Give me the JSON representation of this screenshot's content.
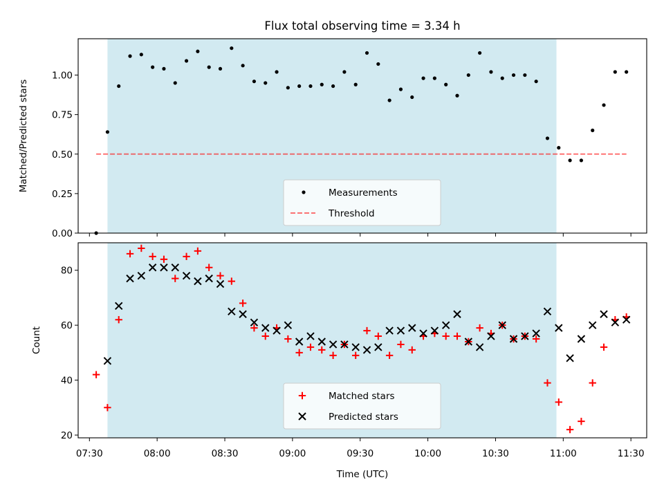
{
  "title": "Flux total observing time = 3.34 h",
  "colors": {
    "shade": "#add8e6",
    "threshold": "#ff0000",
    "matched": "#ff0000",
    "predicted": "#000000",
    "measurement": "#000000"
  },
  "chart_data": [
    {
      "type": "scatter",
      "panel": "top",
      "xlabel": "",
      "ylabel": "Matched/Predicted stars",
      "ylim": [
        0,
        1.23
      ],
      "yticks": [
        "0.00",
        "0.25",
        "0.50",
        "0.75",
        "1.00"
      ],
      "xlim": [
        "07:25",
        "11:37"
      ],
      "shaded_interval": [
        "07:38",
        "10:57"
      ],
      "threshold": {
        "value": 0.5,
        "x_range": [
          "07:33",
          "11:28"
        ],
        "style": "dashed"
      },
      "legend": {
        "position": "lower-center",
        "entries": [
          "Measurements",
          "Threshold"
        ]
      },
      "series": [
        {
          "name": "Measurements",
          "x": [
            "07:33",
            "07:38",
            "07:43",
            "07:48",
            "07:53",
            "07:58",
            "08:03",
            "08:08",
            "08:13",
            "08:18",
            "08:23",
            "08:28",
            "08:33",
            "08:38",
            "08:43",
            "08:48",
            "08:53",
            "08:58",
            "09:03",
            "09:08",
            "09:13",
            "09:18",
            "09:23",
            "09:28",
            "09:33",
            "09:38",
            "09:43",
            "09:48",
            "09:53",
            "09:58",
            "10:03",
            "10:08",
            "10:13",
            "10:18",
            "10:23",
            "10:28",
            "10:33",
            "10:38",
            "10:43",
            "10:48",
            "10:53",
            "10:58",
            "11:03",
            "11:08",
            "11:13",
            "11:18",
            "11:23",
            "11:28"
          ],
          "values": [
            0.0,
            0.64,
            0.93,
            1.12,
            1.13,
            1.05,
            1.04,
            0.95,
            1.09,
            1.15,
            1.05,
            1.04,
            1.17,
            1.06,
            0.96,
            0.95,
            1.02,
            0.92,
            0.93,
            0.93,
            0.94,
            0.93,
            1.02,
            0.94,
            1.14,
            1.07,
            0.84,
            0.91,
            0.86,
            0.98,
            0.98,
            0.94,
            0.87,
            1.0,
            1.14,
            1.02,
            0.98,
            1.0,
            1.0,
            0.96,
            0.6,
            0.54,
            0.46,
            0.46,
            0.65,
            0.81,
            1.02,
            1.02
          ]
        }
      ]
    },
    {
      "type": "scatter",
      "panel": "bottom",
      "xlabel": "Time (UTC)",
      "ylabel": "Count",
      "ylim": [
        19,
        90
      ],
      "yticks": [
        "20",
        "40",
        "60",
        "80"
      ],
      "xlim": [
        "07:25",
        "11:37"
      ],
      "xticks": [
        "07:30",
        "08:00",
        "08:30",
        "09:00",
        "09:30",
        "10:00",
        "10:30",
        "11:00",
        "11:30"
      ],
      "shaded_interval": [
        "07:38",
        "10:57"
      ],
      "legend": {
        "position": "lower-center",
        "entries": [
          "Matched stars",
          "Predicted stars"
        ]
      },
      "series": [
        {
          "name": "Matched stars",
          "marker": "plus",
          "x": [
            "07:33",
            "07:38",
            "07:43",
            "07:48",
            "07:53",
            "07:58",
            "08:03",
            "08:08",
            "08:13",
            "08:18",
            "08:23",
            "08:28",
            "08:33",
            "08:38",
            "08:43",
            "08:48",
            "08:53",
            "08:58",
            "09:03",
            "09:08",
            "09:13",
            "09:18",
            "09:23",
            "09:28",
            "09:33",
            "09:38",
            "09:43",
            "09:48",
            "09:53",
            "09:58",
            "10:03",
            "10:08",
            "10:13",
            "10:18",
            "10:23",
            "10:28",
            "10:33",
            "10:38",
            "10:43",
            "10:48",
            "10:53",
            "10:58",
            "11:03",
            "11:08",
            "11:13",
            "11:18",
            "11:23",
            "11:28"
          ],
          "values": [
            42,
            30,
            62,
            86,
            88,
            85,
            84,
            77,
            85,
            87,
            81,
            78,
            76,
            68,
            59,
            56,
            59,
            55,
            50,
            52,
            51,
            49,
            53,
            49,
            58,
            56,
            49,
            53,
            51,
            56,
            57,
            56,
            56,
            54,
            59,
            57,
            60,
            55,
            56,
            55,
            39,
            32,
            22,
            25,
            39,
            52,
            62,
            63
          ]
        },
        {
          "name": "Predicted stars",
          "marker": "x",
          "x": [
            "07:38",
            "07:43",
            "07:48",
            "07:53",
            "07:58",
            "08:03",
            "08:08",
            "08:13",
            "08:18",
            "08:23",
            "08:28",
            "08:33",
            "08:38",
            "08:43",
            "08:48",
            "08:53",
            "08:58",
            "09:03",
            "09:08",
            "09:13",
            "09:18",
            "09:23",
            "09:28",
            "09:33",
            "09:38",
            "09:43",
            "09:48",
            "09:53",
            "09:58",
            "10:03",
            "10:08",
            "10:13",
            "10:18",
            "10:23",
            "10:28",
            "10:33",
            "10:38",
            "10:43",
            "10:48",
            "10:53",
            "10:58",
            "11:03",
            "11:08",
            "11:13",
            "11:18",
            "11:23",
            "11:28"
          ],
          "values": [
            47,
            67,
            77,
            78,
            81,
            81,
            81,
            78,
            76,
            77,
            75,
            65,
            64,
            61,
            59,
            58,
            60,
            54,
            56,
            54,
            53,
            53,
            52,
            51,
            52,
            58,
            58,
            59,
            57,
            58,
            60,
            64,
            54,
            52,
            56,
            60,
            55,
            56,
            57,
            65,
            59,
            48,
            55,
            60,
            64,
            61,
            62
          ]
        }
      ]
    }
  ]
}
